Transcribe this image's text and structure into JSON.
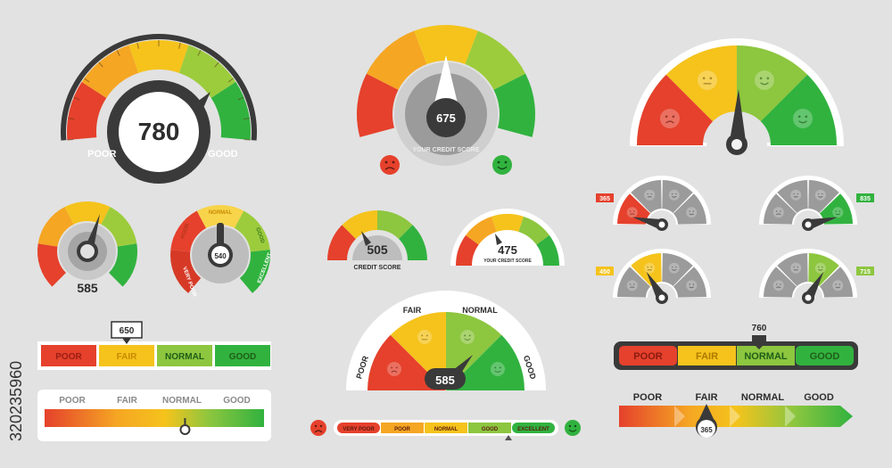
{
  "watermark": "320235960",
  "big_gauge": {
    "score": "780",
    "poor": "POOR",
    "good": "GOOD"
  },
  "credit_gauge_center": {
    "score": "675",
    "caption": "YOUR CREDIT SCORE"
  },
  "small_gauge_left": {
    "score": "585"
  },
  "small_gauge_mid": {
    "score": "540",
    "labels": [
      "NORMAL",
      "POOR",
      "GOOD",
      "VERY POOR",
      "EXCELLENT"
    ]
  },
  "credit_score_small": {
    "score": "505",
    "caption": "CREDIT SCORE"
  },
  "credit_score_small2": {
    "score": "475",
    "caption": "YOUR CREDIT SCORE"
  },
  "mini_gauges": [
    {
      "badge": "365",
      "color": "#e5412c",
      "level": 0.08
    },
    {
      "badge": "835",
      "color": "#31b23f",
      "level": 0.92
    },
    {
      "badge": "450",
      "color": "#f5c31c",
      "level": 0.33
    },
    {
      "badge": "715",
      "color": "#8dc63f",
      "level": 0.67
    }
  ],
  "fair_bar": {
    "marker": "650",
    "segments": [
      "POOR",
      "FAIR",
      "NORMAL",
      "GOOD"
    ],
    "colors": [
      "#e5412c",
      "#f5c31c",
      "#8dc63f",
      "#31b23f"
    ]
  },
  "gradient_bar": {
    "labels": [
      "POOR",
      "FAIR",
      "NORMAL",
      "GOOD"
    ],
    "level": 0.64
  },
  "semicircle_gauge": {
    "score": "585",
    "labels": [
      "POOR",
      "FAIR",
      "NORMAL",
      "GOOD"
    ]
  },
  "pill_scale": {
    "labels": [
      "VERY POOR",
      "POOR",
      "NORMAL",
      "GOOD",
      "EXCELLENT"
    ]
  },
  "normal_bar": {
    "marker": "760",
    "segments": [
      "POOR",
      "FAIR",
      "NORMAL",
      "GOOD"
    ],
    "colors": [
      "#e5412c",
      "#f5c31c",
      "#8dc63f",
      "#31b23f"
    ]
  },
  "arrow_bar": {
    "labels": [
      "POOR",
      "FAIR",
      "NORMAL",
      "GOOD"
    ],
    "marker": "365"
  }
}
